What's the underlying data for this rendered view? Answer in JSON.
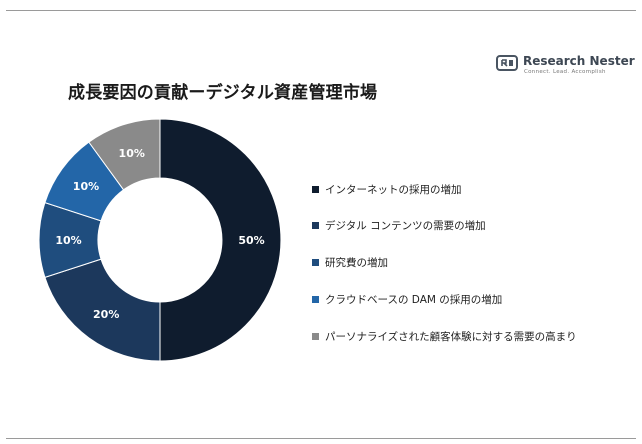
{
  "brand": {
    "name": "Research Nester",
    "tagline": "Connect. Lead. Accomplish"
  },
  "chart_data": {
    "type": "pie",
    "title": "成長要因の貢献ーデジタル資産管理市場",
    "donut": true,
    "categories": [
      "インターネットの採用の増加",
      "デジタル コンテンツの需要の増加",
      "研究費の増加",
      "クラウドベースの DAM の採用の増加",
      "パーソナライズされた顧客体験に対する需要の高まり"
    ],
    "values": [
      50,
      20,
      10,
      10,
      10
    ],
    "data_labels": [
      "50%",
      "20%",
      "10%",
      "10%",
      "10%"
    ],
    "colors": [
      "#0f1c2e",
      "#1c385c",
      "#1f4d7e",
      "#2366a8",
      "#8a8a8a"
    ],
    "legend_position": "right"
  }
}
